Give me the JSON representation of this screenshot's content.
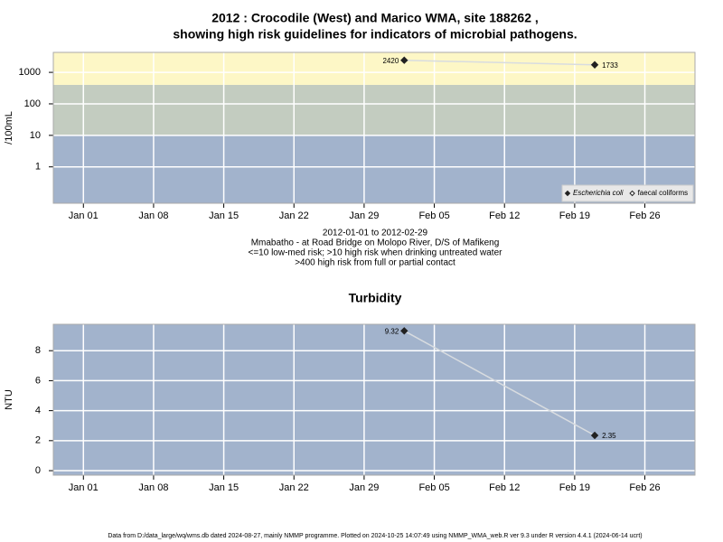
{
  "chart_data": [
    {
      "type": "line",
      "title": [
        "2012 : Crocodile (West) and Marico WMA, site 188262 ,",
        "showing high risk guidelines for indicators of microbial pathogens."
      ],
      "ylabel": "/100mL",
      "log_scale": true,
      "ylim": [
        0.07,
        4300
      ],
      "yticks": [
        1,
        10,
        100,
        1000
      ],
      "xlim": [
        "2011-12-29",
        "2012-03-02"
      ],
      "xticks": [
        {
          "value": "2012-01-01",
          "label": "Jan 01"
        },
        {
          "value": "2012-01-08",
          "label": "Jan 08"
        },
        {
          "value": "2012-01-15",
          "label": "Jan 15"
        },
        {
          "value": "2012-01-22",
          "label": "Jan 22"
        },
        {
          "value": "2012-01-29",
          "label": "Jan 29"
        },
        {
          "value": "2012-02-05",
          "label": "Feb 05"
        },
        {
          "value": "2012-02-12",
          "label": "Feb 12"
        },
        {
          "value": "2012-02-19",
          "label": "Feb 19"
        },
        {
          "value": "2012-02-26",
          "label": "Feb 26"
        }
      ],
      "bands": {
        "thresholds": [
          10,
          400
        ],
        "colors": [
          "#a2b3cc",
          "#c3ccc0",
          "#fdf7c6"
        ]
      },
      "grid": true,
      "line_color": "#d8dce0",
      "legend": "bottom-right",
      "x": [
        "2012-02-02",
        "2012-02-21"
      ],
      "series": [
        {
          "name": "Escherichia coli",
          "color": "#222222",
          "open": false,
          "values": [
            2420,
            1733
          ]
        },
        {
          "name": "faecal coliforms",
          "color": "#222222",
          "open": true,
          "values": [
            null,
            null
          ]
        }
      ],
      "notes": [
        "2012-01-01 to 2012-02-29",
        "Mmabatho - at Road Bridge on Molopo River, D/S of Mafikeng",
        "<=10 low-med risk; >10 high risk when drinking untreated water",
        ">400 high risk from full or partial contact"
      ]
    },
    {
      "type": "line",
      "title": [
        "Turbidity"
      ],
      "ylabel": "NTU",
      "log_scale": false,
      "ylim": [
        -0.3,
        9.76
      ],
      "yticks": [
        0,
        2,
        4,
        6,
        8
      ],
      "xlim": [
        "2011-12-29",
        "2012-03-02"
      ],
      "xticks": [
        {
          "value": "2012-01-01",
          "label": "Jan 01"
        },
        {
          "value": "2012-01-08",
          "label": "Jan 08"
        },
        {
          "value": "2012-01-15",
          "label": "Jan 15"
        },
        {
          "value": "2012-01-22",
          "label": "Jan 22"
        },
        {
          "value": "2012-01-29",
          "label": "Jan 29"
        },
        {
          "value": "2012-02-05",
          "label": "Feb 05"
        },
        {
          "value": "2012-02-12",
          "label": "Feb 12"
        },
        {
          "value": "2012-02-19",
          "label": "Feb 19"
        },
        {
          "value": "2012-02-26",
          "label": "Feb 26"
        }
      ],
      "bands": {
        "thresholds": [],
        "colors": [
          "#a2b3cc"
        ]
      },
      "grid": true,
      "line_color": "#d8dce0",
      "x": [
        "2012-02-02",
        "2012-02-21"
      ],
      "series": [
        {
          "name": "Turbidity",
          "color": "#222222",
          "open": false,
          "values": [
            9.32,
            2.35
          ]
        }
      ]
    }
  ],
  "footer": "Data from D:/data_large/wq/wms.db dated 2024-08-27, mainly NMMP programme. Plotted on 2024-10-25 14:07:49 using NMMP_WMA_web.R ver 9.3 under R version 4.4.1 (2024-06-14 ucrt)"
}
